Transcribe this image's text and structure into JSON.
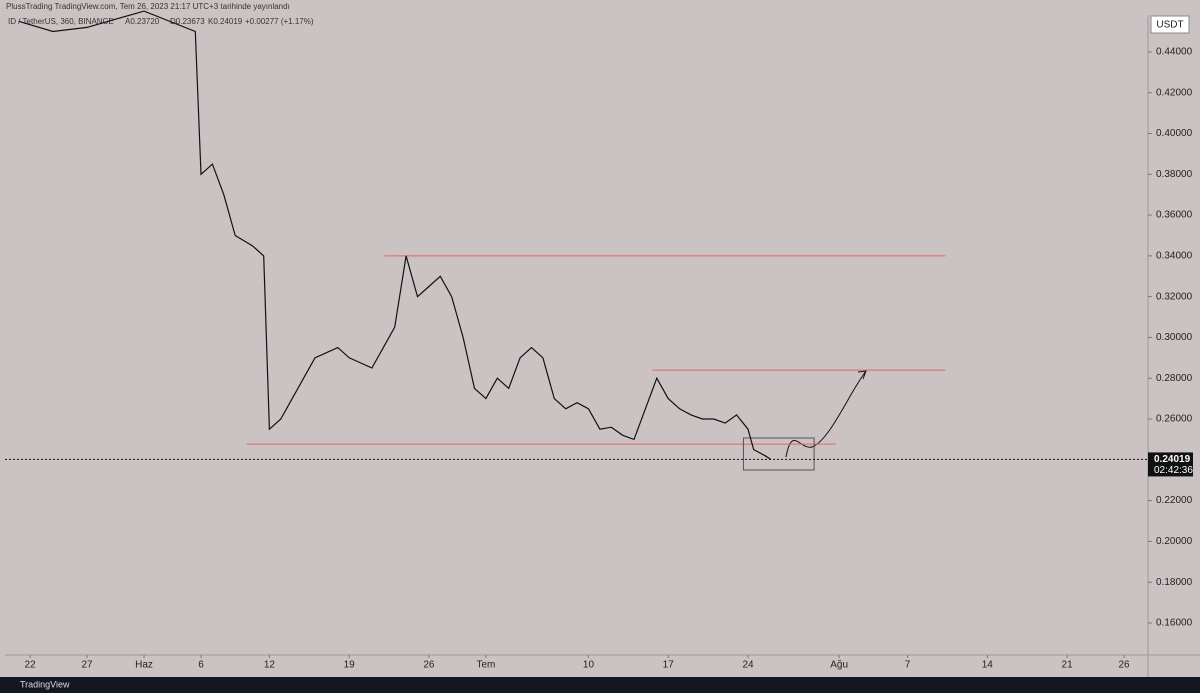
{
  "header": {
    "publisher": "PlussTrading TradingView.com, Tem 26, 2023 21:17 UTC+3 tarihinde yayınlandı",
    "symbol": "ID / TetherUS, 360, BINANCE",
    "open": "A0.23720",
    "low": "D0.23673",
    "close": "K0.24019",
    "change": "+0.00277 (+1.17%)",
    "currency": "USDT",
    "countdown": "02:42:36",
    "brand": "TradingView"
  },
  "chart_data": {
    "type": "line",
    "xlim": [
      -2.2,
      98.1
    ],
    "xticks": [
      {
        "value": 0,
        "label": "22"
      },
      {
        "value": 5,
        "label": "27"
      },
      {
        "value": 10,
        "label": "Haz"
      },
      {
        "value": 15,
        "label": "6"
      },
      {
        "value": 21,
        "label": "12"
      },
      {
        "value": 28,
        "label": "19"
      },
      {
        "value": 35,
        "label": "26"
      },
      {
        "value": 40,
        "label": "Tem"
      },
      {
        "value": 49,
        "label": "10"
      },
      {
        "value": 56,
        "label": "17"
      },
      {
        "value": 63,
        "label": "24"
      },
      {
        "value": 71,
        "label": "Ağu"
      },
      {
        "value": 77,
        "label": "7"
      },
      {
        "value": 84,
        "label": "14"
      },
      {
        "value": 91,
        "label": "21"
      },
      {
        "value": 96,
        "label": "26"
      }
    ],
    "ylim": [
      0.1443,
      0.4581
    ],
    "yticks": [
      {
        "value": 0.16,
        "label": "0.16000"
      },
      {
        "value": 0.18,
        "label": "0.18000"
      },
      {
        "value": 0.2,
        "label": "0.20000"
      },
      {
        "value": 0.22,
        "label": "0.22000"
      },
      {
        "value": 0.24,
        "label": "0.24000"
      },
      {
        "value": 0.26,
        "label": "0.26000"
      },
      {
        "value": 0.28,
        "label": "0.28000"
      },
      {
        "value": 0.3,
        "label": "0.30000"
      },
      {
        "value": 0.32,
        "label": "0.32000"
      },
      {
        "value": 0.34,
        "label": "0.34000"
      },
      {
        "value": 0.36,
        "label": "0.36000"
      },
      {
        "value": 0.38,
        "label": "0.38000"
      },
      {
        "value": 0.4,
        "label": "0.40000"
      },
      {
        "value": 0.42,
        "label": "0.42000"
      },
      {
        "value": 0.44,
        "label": "0.44000"
      }
    ],
    "series": [
      {
        "color": "#111111",
        "x": [
          -1,
          2,
          5,
          10,
          14.5,
          15,
          16,
          17,
          18,
          19.5,
          20.5,
          21,
          22,
          23,
          24,
          25,
          27,
          28,
          30,
          32,
          33,
          34,
          35,
          36,
          37,
          38,
          39,
          40,
          41,
          42,
          43,
          44,
          45,
          46,
          47,
          48,
          49,
          50,
          51,
          52,
          53,
          54,
          55,
          56,
          57,
          58,
          59,
          60,
          61,
          62,
          63,
          63.5,
          64.5,
          65
        ],
        "values": [
          0.455,
          0.45,
          0.452,
          0.46,
          0.45,
          0.38,
          0.385,
          0.37,
          0.35,
          0.345,
          0.34,
          0.255,
          0.26,
          0.27,
          0.28,
          0.29,
          0.295,
          0.29,
          0.285,
          0.305,
          0.34,
          0.32,
          0.325,
          0.33,
          0.32,
          0.3,
          0.275,
          0.27,
          0.28,
          0.275,
          0.29,
          0.295,
          0.29,
          0.27,
          0.265,
          0.268,
          0.265,
          0.255,
          0.256,
          0.252,
          0.25,
          0.265,
          0.28,
          0.27,
          0.265,
          0.262,
          0.26,
          0.26,
          0.258,
          0.262,
          0.255,
          0.245,
          0.242,
          0.24019
        ]
      }
    ],
    "last_price": {
      "value": 0.24019,
      "label": "0.24019"
    },
    "levels": [
      {
        "value": 0.34,
        "x": [
          31.1,
          80.3
        ]
      },
      {
        "value": 0.284,
        "x": [
          54.6,
          80.3
        ]
      },
      {
        "value": 0.2477,
        "x": [
          19,
          70.7
        ]
      }
    ],
    "level_color": "#e06666",
    "range_box": {
      "x": [
        62.6,
        68.8
      ],
      "y": [
        0.235,
        0.2507
      ]
    }
  }
}
